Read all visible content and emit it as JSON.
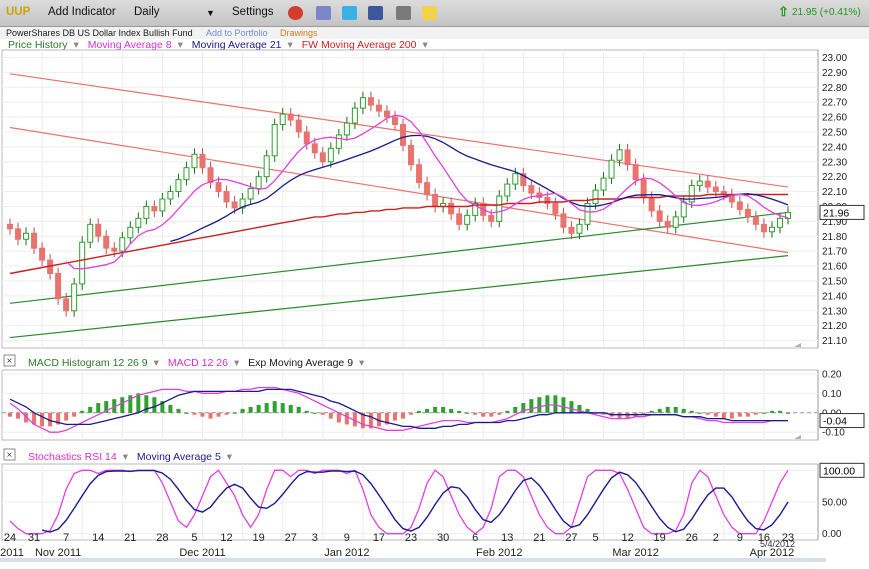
{
  "toolbar": {
    "symbol": "UUP",
    "add_indicator": "Add Indicator",
    "period": "Daily",
    "settings": "Settings",
    "quote": "21.95 (+0.41%)"
  },
  "subbar": {
    "fund_name": "PowerShares DB US Dollar Index Bullish Fund",
    "add_portfolio": "Add to Portfolio",
    "drawings": "Drawings"
  },
  "colors": {
    "up": "#2ea02e",
    "down": "#e8736f",
    "ma8": "#e040e0",
    "ma21": "#1a1a8c",
    "ma200": "#cc2020",
    "channel_red": "#e8736f",
    "channel_green": "#2a8a2a"
  },
  "legends": {
    "price": [
      "Price History",
      "Moving Average 8",
      "Moving Average 21",
      "FW Moving Average 200"
    ],
    "macd": [
      "MACD Histogram 12 26 9",
      "MACD 12 26",
      "Exp Moving Average 9"
    ],
    "stoch": [
      "Stochastics RSI 14",
      "Moving Average 5"
    ]
  },
  "date_label": "5/4/2012",
  "chart_data": [
    {
      "type": "candlestick",
      "title": "Price History",
      "ylim": [
        21.05,
        23.05
      ],
      "yticks": [
        "21.10",
        "21.20",
        "21.30",
        "21.40",
        "21.50",
        "21.60",
        "21.70",
        "21.80",
        "21.90",
        "22.00",
        "22.10",
        "22.20",
        "22.30",
        "22.40",
        "22.50",
        "22.60",
        "22.70",
        "22.80",
        "22.90",
        "23.00"
      ],
      "last_value": "21.96",
      "grid": true,
      "close": [
        21.85,
        21.78,
        21.82,
        21.72,
        21.64,
        21.55,
        21.38,
        21.3,
        21.48,
        21.76,
        21.88,
        21.8,
        21.72,
        21.7,
        21.79,
        21.86,
        21.92,
        22.0,
        21.97,
        22.05,
        22.1,
        22.18,
        22.26,
        22.35,
        22.26,
        22.16,
        22.1,
        22.03,
        21.99,
        22.05,
        22.12,
        22.2,
        22.34,
        22.55,
        22.62,
        22.58,
        22.5,
        22.42,
        22.36,
        22.3,
        22.39,
        22.48,
        22.56,
        22.66,
        22.73,
        22.68,
        22.64,
        22.6,
        22.55,
        22.41,
        22.28,
        22.16,
        22.08,
        22.0,
        22.02,
        21.95,
        21.88,
        21.94,
        22.02,
        21.94,
        21.9,
        22.07,
        22.15,
        22.22,
        22.14,
        22.09,
        22.06,
        22.02,
        21.95,
        21.86,
        21.82,
        21.88,
        22.02,
        22.11,
        22.19,
        22.31,
        22.38,
        22.28,
        22.18,
        22.06,
        21.97,
        21.9,
        21.86,
        21.93,
        22.03,
        22.14,
        22.17,
        22.13,
        22.1,
        22.08,
        22.03,
        21.98,
        21.93,
        21.88,
        21.83,
        21.86,
        21.92,
        21.96
      ],
      "series": [
        {
          "name": "Moving Average 8",
          "window": 8
        },
        {
          "name": "Moving Average 21",
          "window": 21
        },
        {
          "name": "FW Moving Average 200",
          "values": [
            21.55,
            21.56,
            21.57,
            21.58,
            21.59,
            21.6,
            21.61,
            21.62,
            21.63,
            21.64,
            21.65,
            21.66,
            21.67,
            21.68,
            21.69,
            21.7,
            21.71,
            21.72,
            21.73,
            21.74,
            21.75,
            21.76,
            21.77,
            21.78,
            21.79,
            21.8,
            21.81,
            21.82,
            21.83,
            21.84,
            21.85,
            21.86,
            21.87,
            21.88,
            21.89,
            21.9,
            21.91,
            21.92,
            21.93,
            21.93,
            21.94,
            21.95,
            21.95,
            21.96,
            21.96,
            21.97,
            21.97,
            21.98,
            21.98,
            21.99,
            21.99,
            21.99,
            22.0,
            22.0,
            22.0,
            22.0,
            22.0,
            22.0,
            22.01,
            22.01,
            22.01,
            22.01,
            22.02,
            22.02,
            22.02,
            22.02,
            22.03,
            22.03,
            22.03,
            22.03,
            22.04,
            22.04,
            22.04,
            22.05,
            22.05,
            22.05,
            22.05,
            22.06,
            22.06,
            22.06,
            22.06,
            22.06,
            22.07,
            22.07,
            22.07,
            22.07,
            22.07,
            22.08,
            22.08,
            22.08,
            22.08,
            22.08,
            22.08,
            22.08,
            22.08,
            22.08,
            22.08,
            22.08
          ]
        }
      ]
    },
    {
      "type": "bar",
      "title": "MACD Histogram 12 26 9",
      "ylim": [
        -0.14,
        0.22
      ],
      "yticks": [
        "0.20",
        "0.10",
        "0.00",
        "-0.10"
      ],
      "last_value": "-0.04",
      "histogram": [
        -0.02,
        -0.03,
        -0.05,
        -0.06,
        -0.07,
        -0.07,
        -0.06,
        -0.04,
        -0.02,
        0.01,
        0.03,
        0.05,
        0.06,
        0.07,
        0.08,
        0.09,
        0.1,
        0.09,
        0.08,
        0.06,
        0.04,
        0.02,
        0.0,
        -0.01,
        -0.02,
        -0.03,
        -0.02,
        -0.01,
        0.0,
        0.02,
        0.03,
        0.04,
        0.05,
        0.06,
        0.05,
        0.04,
        0.03,
        0.01,
        0.0,
        -0.01,
        -0.03,
        -0.05,
        -0.06,
        -0.07,
        -0.08,
        -0.08,
        -0.07,
        -0.06,
        -0.04,
        -0.03,
        -0.01,
        0.01,
        0.02,
        0.03,
        0.03,
        0.02,
        0.01,
        0.0,
        -0.01,
        -0.02,
        -0.02,
        -0.01,
        0.01,
        0.03,
        0.05,
        0.07,
        0.08,
        0.09,
        0.09,
        0.08,
        0.06,
        0.04,
        0.02,
        0.0,
        -0.01,
        -0.02,
        -0.03,
        -0.03,
        -0.02,
        -0.01,
        0.01,
        0.02,
        0.03,
        0.03,
        0.02,
        0.01,
        0.0,
        -0.01,
        -0.02,
        -0.03,
        -0.03,
        -0.02,
        -0.02,
        -0.01,
        0.0,
        0.01,
        0.01,
        0.0
      ],
      "macd": [
        0.05,
        0.02,
        -0.02,
        -0.06,
        -0.08,
        -0.1,
        -0.1,
        -0.09,
        -0.07,
        -0.05,
        -0.03,
        -0.01,
        0.01,
        0.03,
        0.05,
        0.07,
        0.09,
        0.1,
        0.11,
        0.12,
        0.12,
        0.12,
        0.11,
        0.11,
        0.1,
        0.1,
        0.1,
        0.11,
        0.11,
        0.12,
        0.12,
        0.13,
        0.13,
        0.13,
        0.12,
        0.11,
        0.1,
        0.08,
        0.06,
        0.04,
        0.02,
        0.0,
        -0.02,
        -0.04,
        -0.06,
        -0.07,
        -0.08,
        -0.09,
        -0.09,
        -0.09,
        -0.08,
        -0.07,
        -0.06,
        -0.05,
        -0.04,
        -0.04,
        -0.04,
        -0.05,
        -0.05,
        -0.05,
        -0.05,
        -0.04,
        -0.03,
        -0.01,
        0.01,
        0.02,
        0.03,
        0.04,
        0.04,
        0.03,
        0.02,
        0.01,
        0.0,
        -0.01,
        -0.02,
        -0.03,
        -0.03,
        -0.03,
        -0.02,
        -0.02,
        -0.01,
        -0.01,
        -0.01,
        -0.01,
        -0.02,
        -0.02,
        -0.03,
        -0.04,
        -0.04,
        -0.05,
        -0.05,
        -0.05,
        -0.05,
        -0.05,
        -0.05,
        -0.04,
        -0.04,
        -0.04
      ],
      "signal": [
        0.07,
        0.05,
        0.03,
        0.0,
        -0.02,
        -0.04,
        -0.05,
        -0.06,
        -0.06,
        -0.06,
        -0.06,
        -0.05,
        -0.04,
        -0.03,
        -0.02,
        -0.01,
        0.0,
        0.02,
        0.03,
        0.05,
        0.07,
        0.09,
        0.1,
        0.11,
        0.11,
        0.11,
        0.11,
        0.11,
        0.11,
        0.11,
        0.11,
        0.11,
        0.12,
        0.12,
        0.12,
        0.12,
        0.11,
        0.1,
        0.09,
        0.08,
        0.06,
        0.05,
        0.03,
        0.01,
        -0.01,
        -0.02,
        -0.04,
        -0.05,
        -0.06,
        -0.07,
        -0.07,
        -0.08,
        -0.08,
        -0.08,
        -0.07,
        -0.07,
        -0.06,
        -0.06,
        -0.05,
        -0.05,
        -0.05,
        -0.05,
        -0.04,
        -0.04,
        -0.03,
        -0.02,
        -0.01,
        -0.01,
        0.0,
        0.0,
        0.0,
        0.0,
        0.0,
        0.0,
        0.0,
        -0.01,
        -0.01,
        -0.01,
        -0.01,
        -0.01,
        -0.01,
        -0.01,
        -0.01,
        -0.01,
        -0.02,
        -0.02,
        -0.02,
        -0.03,
        -0.03,
        -0.03,
        -0.04,
        -0.04,
        -0.04,
        -0.04,
        -0.04,
        -0.04,
        -0.04,
        -0.04
      ]
    },
    {
      "type": "line",
      "title": "Stochastics RSI 14",
      "ylim": [
        -10,
        110
      ],
      "yticks": [
        "100.00",
        "50.00",
        "0.00"
      ],
      "last_value": "100.00",
      "stoch": [
        20,
        8,
        0,
        0,
        0,
        5,
        30,
        70,
        95,
        100,
        100,
        95,
        100,
        100,
        100,
        98,
        100,
        100,
        100,
        80,
        50,
        20,
        10,
        30,
        60,
        90,
        100,
        80,
        60,
        30,
        10,
        30,
        70,
        100,
        100,
        90,
        100,
        100,
        95,
        100,
        100,
        100,
        95,
        100,
        70,
        30,
        10,
        0,
        0,
        0,
        10,
        40,
        80,
        100,
        90,
        60,
        30,
        10,
        0,
        10,
        40,
        90,
        100,
        100,
        90,
        60,
        30,
        10,
        0,
        0,
        10,
        50,
        90,
        100,
        100,
        100,
        95,
        70,
        40,
        10,
        0,
        0,
        0,
        5,
        30,
        80,
        100,
        90,
        60,
        30,
        10,
        0,
        0,
        0,
        20,
        50,
        80,
        100
      ],
      "x_labels": [
        {
          "i": 0,
          "t": "24"
        },
        {
          "i": 3,
          "t": "31"
        },
        {
          "i": 7,
          "t": "7"
        },
        {
          "i": 11,
          "t": "14"
        },
        {
          "i": 15,
          "t": "21"
        },
        {
          "i": 19,
          "t": "28"
        },
        {
          "i": 23,
          "t": "5"
        },
        {
          "i": 27,
          "t": "12"
        },
        {
          "i": 31,
          "t": "19"
        },
        {
          "i": 35,
          "t": "27"
        },
        {
          "i": 38,
          "t": "3"
        },
        {
          "i": 42,
          "t": "9"
        },
        {
          "i": 46,
          "t": "17"
        },
        {
          "i": 50,
          "t": "23"
        },
        {
          "i": 54,
          "t": "30"
        },
        {
          "i": 58,
          "t": "6"
        },
        {
          "i": 62,
          "t": "13"
        },
        {
          "i": 66,
          "t": "21"
        },
        {
          "i": 70,
          "t": "27"
        },
        {
          "i": 73,
          "t": "5"
        },
        {
          "i": 77,
          "t": "12"
        },
        {
          "i": 81,
          "t": "19"
        },
        {
          "i": 85,
          "t": "26"
        },
        {
          "i": 88,
          "t": "2"
        },
        {
          "i": 91,
          "t": "9"
        },
        {
          "i": 94,
          "t": "16"
        },
        {
          "i": 97,
          "t": "23"
        }
      ],
      "month_labels": [
        {
          "i": -1,
          "t": "2011"
        },
        {
          "i": 6,
          "t": "Nov 2011"
        },
        {
          "i": 24,
          "t": "Dec 2011"
        },
        {
          "i": 42,
          "t": "Jan 2012"
        },
        {
          "i": 61,
          "t": "Feb 2012"
        },
        {
          "i": 78,
          "t": "Mar 2012"
        },
        {
          "i": 95,
          "t": "Apr 2012"
        }
      ]
    }
  ]
}
